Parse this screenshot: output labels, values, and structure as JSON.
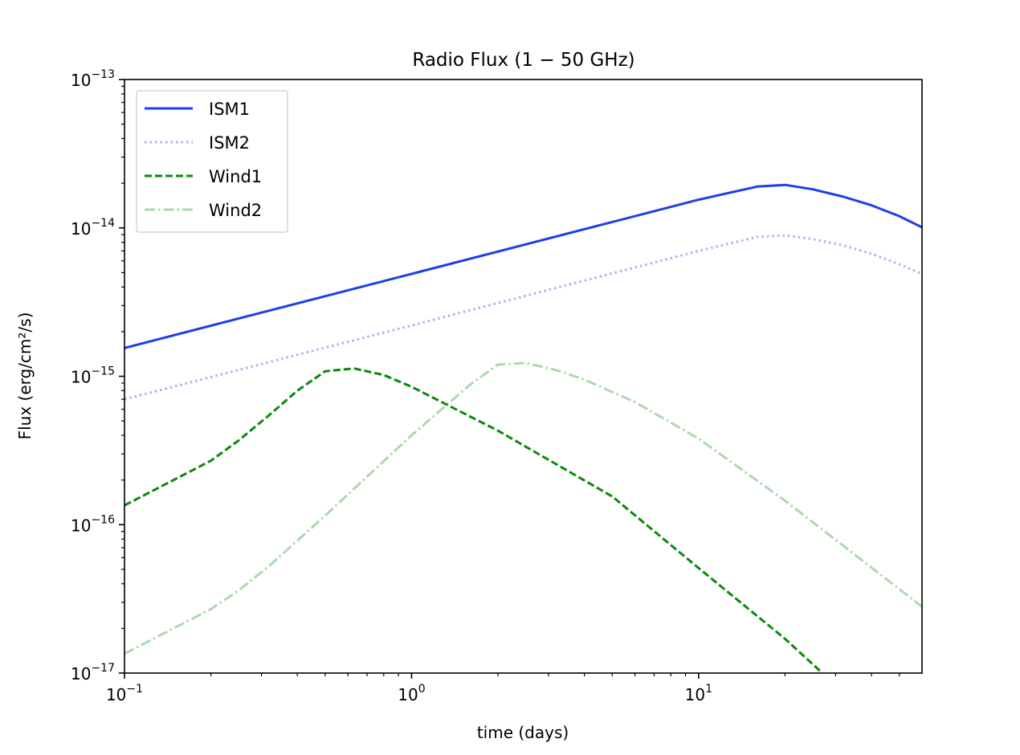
{
  "chart_data": {
    "type": "line",
    "title": "Radio Flux (1 − 50 GHz)",
    "xlabel": "time (days)",
    "ylabel": "Flux (erg/cm²/s)",
    "xscale": "log",
    "yscale": "log",
    "xlim": [
      0.1,
      60
    ],
    "ylim": [
      1e-17,
      1e-13
    ],
    "grid": false,
    "legend_position": "upper-left",
    "x_ticks": [
      {
        "value": 0.1,
        "base": "10",
        "exp": "−1"
      },
      {
        "value": 1,
        "base": "10",
        "exp": "0"
      },
      {
        "value": 10,
        "base": "10",
        "exp": "1"
      }
    ],
    "y_ticks": [
      {
        "value": 1e-17,
        "base": "10",
        "exp": "−17"
      },
      {
        "value": 1e-16,
        "base": "10",
        "exp": "−16"
      },
      {
        "value": 1e-15,
        "base": "10",
        "exp": "−15"
      },
      {
        "value": 1e-14,
        "base": "10",
        "exp": "−14"
      },
      {
        "value": 1e-13,
        "base": "10",
        "exp": "−13"
      }
    ],
    "series": [
      {
        "name": "ISM1",
        "color": "#1f3fe8",
        "style": "solid",
        "opacity": 1,
        "x": [
          0.1,
          1,
          10,
          16,
          20,
          25,
          32,
          40,
          50,
          60
        ],
        "y": [
          1.55e-15,
          4.9e-15,
          1.55e-14,
          1.9e-14,
          1.95e-14,
          1.82e-14,
          1.62e-14,
          1.42e-14,
          1.2e-14,
          1.01e-14
        ]
      },
      {
        "name": "ISM2",
        "color": "#1f3fe8",
        "style": "dotted",
        "opacity": 0.4,
        "x": [
          0.1,
          1,
          10,
          16,
          20,
          25,
          32,
          40,
          50,
          60
        ],
        "y": [
          7e-16,
          2.2e-15,
          7e-15,
          8.7e-15,
          8.9e-15,
          8.4e-15,
          7.6e-15,
          6.7e-15,
          5.7e-15,
          4.9e-15
        ]
      },
      {
        "name": "Wind1",
        "color": "#0a8a0a",
        "style": "dashed",
        "opacity": 1,
        "x": [
          0.1,
          0.2,
          0.25,
          0.32,
          0.4,
          0.5,
          0.63,
          0.8,
          1,
          2,
          5,
          10,
          20,
          27
        ],
        "y": [
          1.35e-16,
          2.7e-16,
          3.7e-16,
          5.5e-16,
          8e-16,
          1.08e-15,
          1.13e-15,
          1.02e-15,
          8.5e-16,
          4.3e-16,
          1.55e-16,
          5.1e-17,
          1.7e-17,
          1e-17
        ]
      },
      {
        "name": "Wind2",
        "color": "#0a8a0a",
        "style": "dashdot",
        "opacity": 0.33,
        "x": [
          0.1,
          0.2,
          0.25,
          0.32,
          0.5,
          1,
          1.6,
          2,
          2.5,
          3.2,
          4,
          6,
          10,
          20,
          60
        ],
        "y": [
          1.35e-17,
          2.7e-17,
          3.6e-17,
          5.3e-17,
          1.15e-16,
          4e-16,
          8.8e-16,
          1.2e-15,
          1.23e-15,
          1.1e-15,
          9.5e-16,
          6.7e-16,
          3.8e-16,
          1.45e-16,
          2.8e-17
        ]
      }
    ]
  }
}
